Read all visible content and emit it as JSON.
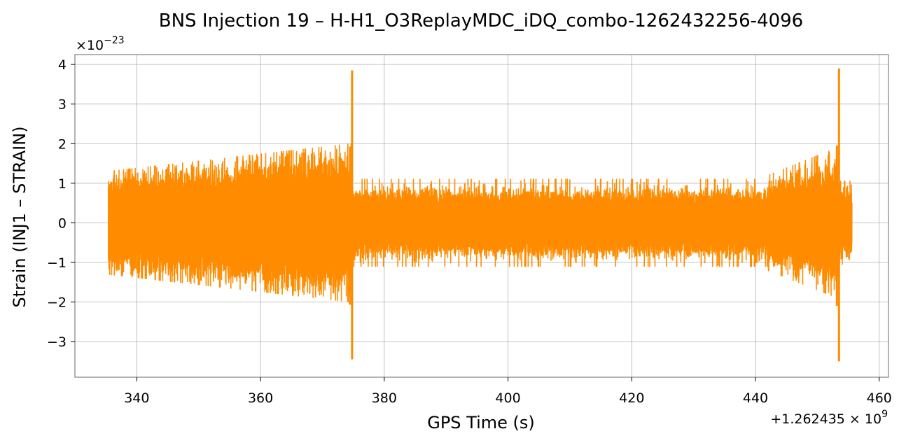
{
  "colors": {
    "series": "#ff8c00",
    "grid": "#b0b0b0",
    "frame": "#808080"
  },
  "chart_data": {
    "type": "line",
    "title": "BNS Injection 19 – H-H1_O3ReplayMDC_iDQ_combo-1262432256-4096",
    "xlabel": "GPS Time (s)",
    "ylabel": "Strain (INJ1 – STRAIN)",
    "x_offset_label": {
      "base": "+1.262435 × 10",
      "exponent": "9"
    },
    "y_scale_label": {
      "base": "×10",
      "exponent": "−23"
    },
    "xlim": [
      330,
      461.5
    ],
    "ylim": [
      -3.9,
      4.25
    ],
    "x_ticks": [
      340,
      360,
      380,
      400,
      420,
      440,
      460
    ],
    "x_tick_labels": [
      "340",
      "360",
      "380",
      "400",
      "420",
      "440",
      "460"
    ],
    "y_ticks": [
      -3,
      -2,
      -1,
      0,
      1,
      2,
      3,
      4
    ],
    "y_tick_labels": [
      "−3",
      "−2",
      "−1",
      "0",
      "1",
      "2",
      "3",
      "4"
    ],
    "grid": true,
    "series": [
      {
        "color": "#ff8c00",
        "x_start": 335.4,
        "x_end": 455.6,
        "segments": [
          {
            "x": [
              335.4,
              374.8
            ],
            "amplitude_start": 1.05,
            "amplitude_end": 1.6,
            "max_start": 1.3,
            "max_end": 2.0
          },
          {
            "x": [
              374.8,
              442.0
            ],
            "amplitude": 0.75,
            "max": 1.1
          },
          {
            "x": [
              442.0,
              453.3
            ],
            "amplitude_start": 0.9,
            "amplitude_end": 1.45,
            "max_start": 1.2,
            "max_end": 1.9
          },
          {
            "x": [
              453.5,
              455.6
            ],
            "amplitude": 0.8,
            "max": 1.05
          }
        ],
        "peaks": [
          {
            "x": 374.8,
            "max": 3.85,
            "min": -3.45
          },
          {
            "x": 453.5,
            "max": 3.9,
            "min": -3.5
          }
        ]
      }
    ]
  }
}
